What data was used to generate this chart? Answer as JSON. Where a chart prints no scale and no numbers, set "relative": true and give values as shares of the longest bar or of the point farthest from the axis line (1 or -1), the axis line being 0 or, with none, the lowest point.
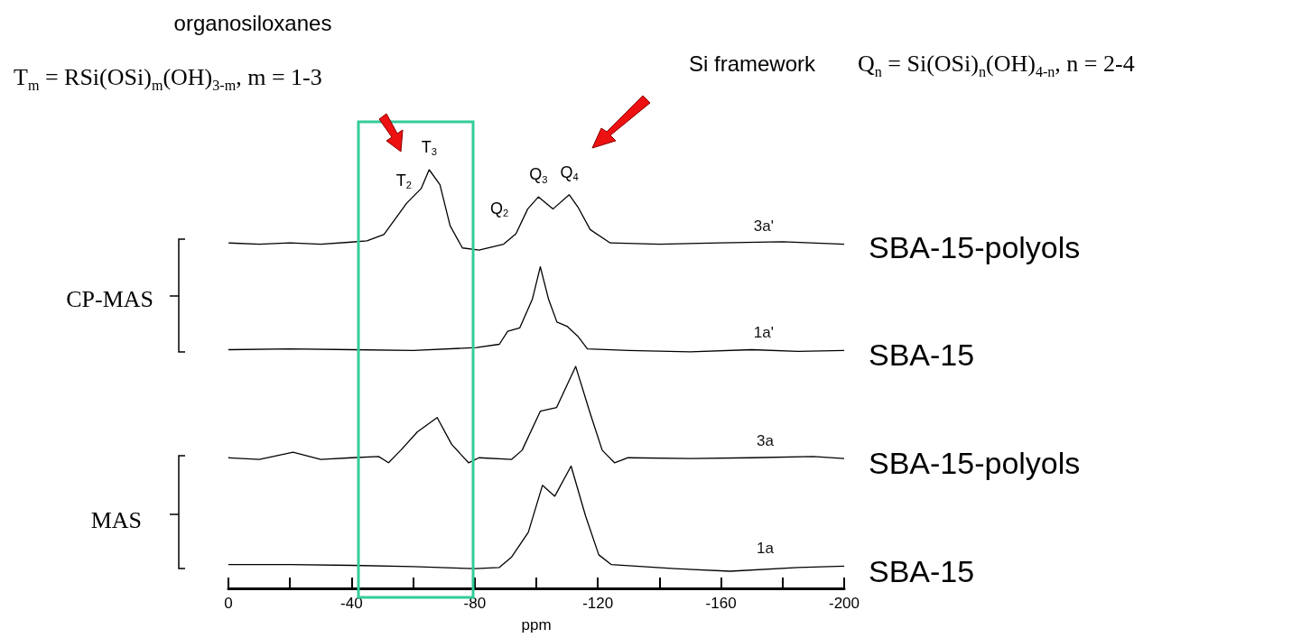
{
  "chart_data": {
    "type": "line",
    "relative": true,
    "xlabel": "ppm",
    "xlim": [
      0,
      -200
    ],
    "xticks": [
      0,
      {
        "value": -20,
        "label": null
      },
      -40,
      {
        "value": -60,
        "label": null
      },
      -80,
      {
        "value": -100,
        "label": null
      },
      -120,
      {
        "value": -140,
        "label": null
      },
      -160,
      {
        "value": -180,
        "label": null
      },
      -200
    ],
    "legend": false,
    "grid": false,
    "marker": "none",
    "line_style": "solid",
    "series": [
      {
        "name": "3a'",
        "color": "#000000",
        "x": [
          0,
          -10,
          -20,
          -30,
          -40,
          -45,
          -50.5,
          -57.9,
          -62.6,
          -65.2,
          -68.7,
          -72,
          -76,
          -81.4,
          -89.4,
          -93.4,
          -97.2,
          -100.7,
          -105.4,
          -110.7,
          -113.5,
          -117.5,
          -124,
          -140,
          -160,
          -180,
          -200
        ],
        "values": [
          0.825,
          0.822,
          0.825,
          0.822,
          0.827,
          0.83,
          0.845,
          0.92,
          0.955,
          1,
          0.964,
          0.866,
          0.813,
          0.808,
          0.822,
          0.847,
          0.906,
          0.935,
          0.906,
          0.94,
          0.911,
          0.857,
          0.825,
          0.822,
          0.825,
          0.828,
          0.822
        ]
      },
      {
        "name": "1a'",
        "color": "#000000",
        "x": [
          0,
          -20,
          -40,
          -60,
          -80.6,
          -88,
          -90.7,
          -94.6,
          -98.7,
          -101.3,
          -104,
          -106.7,
          -110,
          -113.5,
          -116.6,
          -130,
          -150,
          -170,
          -185,
          -200
        ],
        "values": [
          0.57,
          0.572,
          0.57,
          0.568,
          0.575,
          0.583,
          0.614,
          0.622,
          0.69,
          0.768,
          0.69,
          0.636,
          0.626,
          0.602,
          0.572,
          0.568,
          0.565,
          0.57,
          0.566,
          0.568
        ]
      },
      {
        "name": "3a",
        "color": "#000000",
        "x": [
          0,
          -10,
          -21,
          -30,
          -40,
          -48.8,
          -52,
          -56,
          -61.4,
          -67.8,
          -72.5,
          -78,
          -81.4,
          -92,
          -95.4,
          -101.3,
          -106.6,
          -112.8,
          -117.5,
          -121.4,
          -125.4,
          -129.8,
          -150,
          -170,
          -190,
          -200
        ],
        "values": [
          0.312,
          0.308,
          0.325,
          0.308,
          0.312,
          0.315,
          0.3,
          0.33,
          0.374,
          0.408,
          0.344,
          0.3,
          0.312,
          0.308,
          0.33,
          0.423,
          0.432,
          0.53,
          0.418,
          0.33,
          0.3,
          0.312,
          0.31,
          0.312,
          0.315,
          0.31
        ]
      },
      {
        "name": "1a",
        "color": "#000000",
        "x": [
          0,
          -20,
          -40,
          -60,
          -80,
          -88,
          -92,
          -97.4,
          -102,
          -106,
          -111.3,
          -116,
          -120.3,
          -124.3,
          -145,
          -163,
          -185,
          -200
        ],
        "values": [
          0.057,
          0.057,
          0.055,
          0.052,
          0.047,
          0.05,
          0.075,
          0.134,
          0.246,
          0.22,
          0.292,
          0.173,
          0.08,
          0.057,
          0.047,
          0.041,
          0.05,
          0.053
        ]
      }
    ],
    "annotations": [
      "organosiloxanes",
      "T$_{m}$ = RSi(OSi)$_{m}$(OH)$_{3-m}$, m = 1-3",
      "Si framework",
      "Q$_{n}$ = Si(OSi)$_{n}$(OH)$_{4-n}$, n = 2-4",
      {
        "text": "T$_{2}$",
        "x": -57,
        "y": 0.92
      },
      {
        "text": "T$_{3}$",
        "x": -65.2,
        "y": 1
      },
      "Q$_{2}$",
      {
        "text": "Q$_{3}$",
        "x": -100.7,
        "y": 0.935
      },
      {
        "text": "Q$_{4}$",
        "x": -110.7,
        "y": 0.94
      },
      "CP-MAS",
      "MAS",
      {
        "text": "SBA-15-polyols",
        "x": -200,
        "y": 0.825
      },
      {
        "text": "SBA-15",
        "x": -200,
        "y": 0.57
      },
      {
        "text": "SBA-15-polyols",
        "x": -200,
        "y": 0.31
      },
      {
        "text": "SBA-15",
        "x": -200,
        "y": 0.053
      }
    ]
  }
}
